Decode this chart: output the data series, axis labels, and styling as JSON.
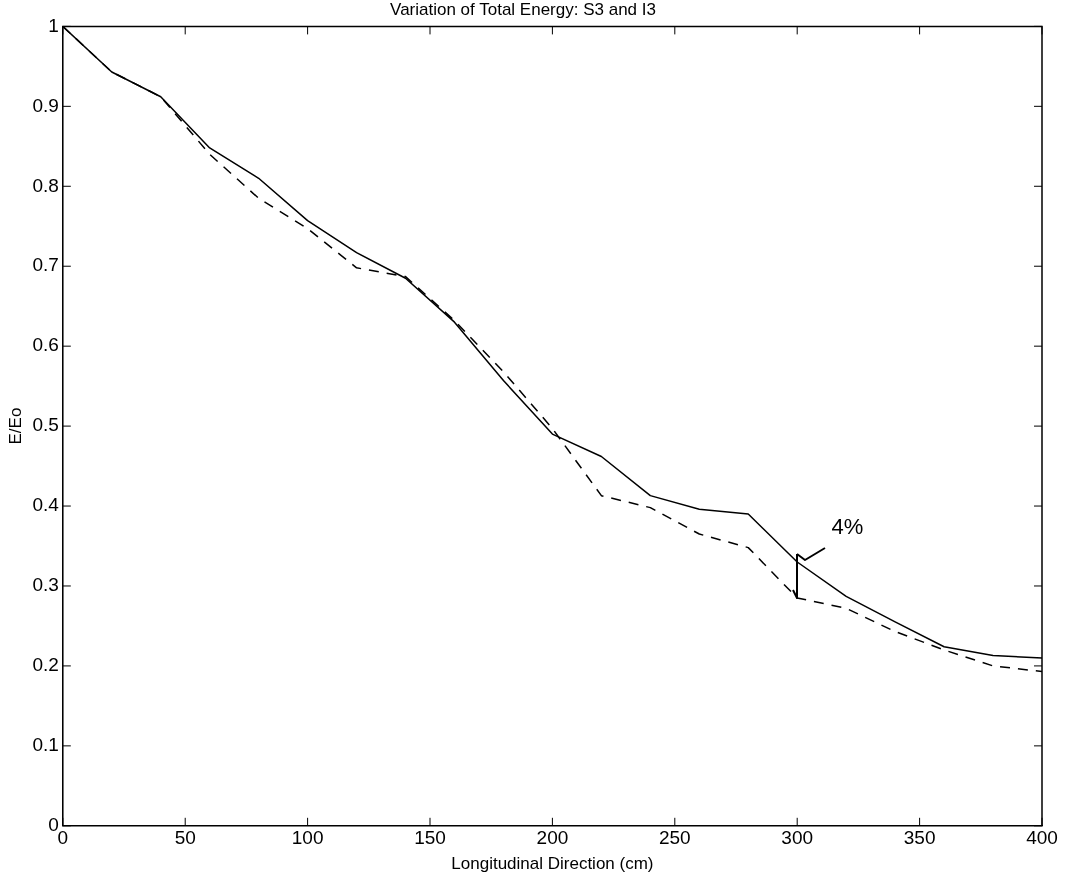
{
  "chart_data": {
    "type": "line",
    "title": "Variation of Total Energy: S3 and I3",
    "xlabel": "Longitudinal Direction (cm)",
    "ylabel": "E/Eo",
    "x": [
      0,
      20,
      40,
      60,
      80,
      100,
      120,
      140,
      160,
      180,
      200,
      220,
      240,
      260,
      280,
      300,
      320,
      340,
      360,
      380,
      400
    ],
    "series": [
      {
        "color": "#000000",
        "line_style": "solid",
        "values": [
          1.0,
          0.943,
          0.912,
          0.848,
          0.81,
          0.757,
          0.717,
          0.685,
          0.63,
          0.557,
          0.49,
          0.462,
          0.413,
          0.396,
          0.39,
          0.33,
          0.287,
          0.255,
          0.224,
          0.213,
          0.21
        ]
      },
      {
        "color": "#000000",
        "line_style": "dashed",
        "values": [
          1.0,
          0.943,
          0.912,
          0.84,
          0.785,
          0.747,
          0.698,
          0.687,
          0.632,
          0.568,
          0.497,
          0.413,
          0.398,
          0.365,
          0.348,
          0.285,
          0.272,
          0.243,
          0.22,
          0.2,
          0.193
        ]
      }
    ],
    "xlim": [
      0,
      400
    ],
    "xticks": [
      0,
      50,
      100,
      150,
      200,
      250,
      300,
      350,
      400
    ],
    "ylim": [
      0,
      1
    ],
    "yticks": [
      0,
      0.1,
      0.2,
      0.3,
      0.4,
      0.5,
      0.6,
      0.7,
      0.8,
      0.9,
      1
    ],
    "grid": false,
    "legend": false,
    "annotations": [
      "4%"
    ]
  }
}
